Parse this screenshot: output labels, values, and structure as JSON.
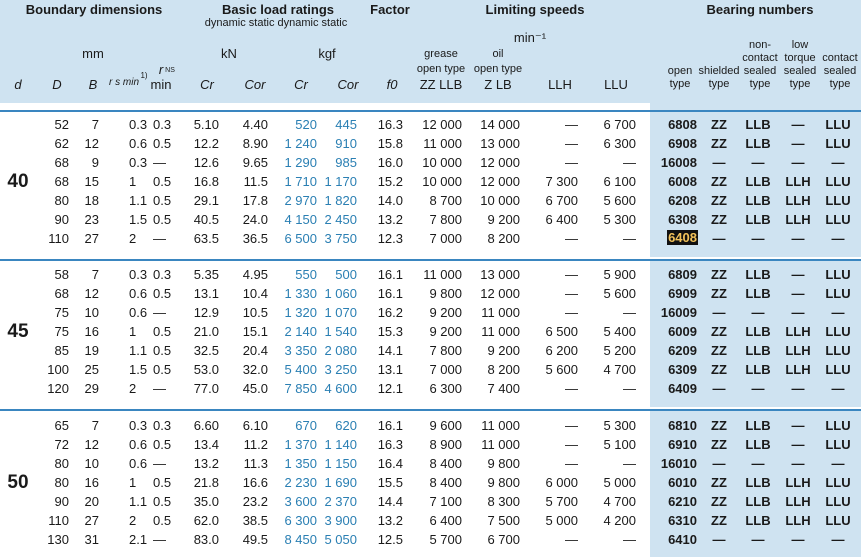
{
  "header": {
    "titles": {
      "boundary": "Boundary dimensions",
      "load": "Basic load ratings",
      "factor": "Factor",
      "limiting": "Limiting speeds",
      "bearing": "Bearing numbers"
    },
    "load_sub": "dynamic   static  dynamic  static",
    "unit_mm": "mm",
    "unit_kn": "kN",
    "unit_kgf": "kgf",
    "unit_min": "min⁻¹",
    "rns_top": "r",
    "rns_sub": "NS",
    "grease": "grease",
    "grease_type": "open type",
    "grease_codes": "ZZ  LLB",
    "oil": "oil",
    "oil_type": "open type",
    "oil_codes": "Z  LB",
    "bearing_heads": [
      [
        "open",
        "type"
      ],
      [
        "shielded",
        "type"
      ],
      [
        "non-",
        "contact",
        "sealed",
        "type"
      ],
      [
        "low",
        "torque",
        "sealed",
        "type"
      ],
      [
        "contact",
        "sealed",
        "type"
      ]
    ],
    "cols": [
      "d",
      "D",
      "B",
      "r s min",
      "1)",
      "min",
      "Cr",
      "Cor",
      "Cr",
      "Cor",
      "f0",
      "LLH",
      "LLU"
    ]
  },
  "groups": [
    {
      "d": "40",
      "rows": [
        [
          "52",
          "7",
          "0.3",
          "0.3",
          "5.10",
          "4.40",
          "520",
          "445",
          "16.3",
          "12 000",
          "14 000",
          "—",
          "6 700",
          "6808",
          "ZZ",
          "LLB",
          "—",
          "LLU"
        ],
        [
          "62",
          "12",
          "0.6",
          "0.5",
          "12.2",
          "8.90",
          "1 240",
          "910",
          "15.8",
          "11 000",
          "13 000",
          "—",
          "6 300",
          "6908",
          "ZZ",
          "LLB",
          "—",
          "LLU"
        ],
        [
          "68",
          "9",
          "0.3",
          "—",
          "12.6",
          "9.65",
          "1 290",
          "985",
          "16.0",
          "10 000",
          "12 000",
          "—",
          "—",
          "16008",
          "—",
          "—",
          "—",
          "—"
        ],
        [
          "68",
          "15",
          "1",
          "0.5",
          "16.8",
          "11.5",
          "1 710",
          "1 170",
          "15.2",
          "10 000",
          "12 000",
          "7 300",
          "6 100",
          "6008",
          "ZZ",
          "LLB",
          "LLH",
          "LLU"
        ],
        [
          "80",
          "18",
          "1.1",
          "0.5",
          "29.1",
          "17.8",
          "2 970",
          "1 820",
          "14.0",
          "8 700",
          "10 000",
          "6 700",
          "5 600",
          "6208",
          "ZZ",
          "LLB",
          "LLH",
          "LLU"
        ],
        [
          "90",
          "23",
          "1.5",
          "0.5",
          "40.5",
          "24.0",
          "4 150",
          "2 450",
          "13.2",
          "7 800",
          "9 200",
          "6 400",
          "5 300",
          "6308",
          "ZZ",
          "LLB",
          "LLH",
          "LLU"
        ],
        [
          "110",
          "27",
          "2",
          "—",
          "63.5",
          "36.5",
          "6 500",
          "3 750",
          "12.3",
          "7 000",
          "8 200",
          "—",
          "—",
          "6408",
          "—",
          "—",
          "—",
          "—"
        ]
      ]
    },
    {
      "d": "45",
      "rows": [
        [
          "58",
          "7",
          "0.3",
          "0.3",
          "5.35",
          "4.95",
          "550",
          "500",
          "16.1",
          "11 000",
          "13 000",
          "—",
          "5 900",
          "6809",
          "ZZ",
          "LLB",
          "—",
          "LLU"
        ],
        [
          "68",
          "12",
          "0.6",
          "0.5",
          "13.1",
          "10.4",
          "1 330",
          "1 060",
          "16.1",
          "9 800",
          "12 000",
          "—",
          "5 600",
          "6909",
          "ZZ",
          "LLB",
          "—",
          "LLU"
        ],
        [
          "75",
          "10",
          "0.6",
          "—",
          "12.9",
          "10.5",
          "1 320",
          "1 070",
          "16.2",
          "9 200",
          "11 000",
          "—",
          "—",
          "16009",
          "—",
          "—",
          "—",
          "—"
        ],
        [
          "75",
          "16",
          "1",
          "0.5",
          "21.0",
          "15.1",
          "2 140",
          "1 540",
          "15.3",
          "9 200",
          "11 000",
          "6 500",
          "5 400",
          "6009",
          "ZZ",
          "LLB",
          "LLH",
          "LLU"
        ],
        [
          "85",
          "19",
          "1.1",
          "0.5",
          "32.5",
          "20.4",
          "3 350",
          "2 080",
          "14.1",
          "7 800",
          "9 200",
          "6 200",
          "5 200",
          "6209",
          "ZZ",
          "LLB",
          "LLH",
          "LLU"
        ],
        [
          "100",
          "25",
          "1.5",
          "0.5",
          "53.0",
          "32.0",
          "5 400",
          "3 250",
          "13.1",
          "7 000",
          "8 200",
          "5 600",
          "4 700",
          "6309",
          "ZZ",
          "LLB",
          "LLH",
          "LLU"
        ],
        [
          "120",
          "29",
          "2",
          "—",
          "77.0",
          "45.0",
          "7 850",
          "4 600",
          "12.1",
          "6 300",
          "7 400",
          "—",
          "—",
          "6409",
          "—",
          "—",
          "—",
          "—"
        ]
      ]
    },
    {
      "d": "50",
      "rows": [
        [
          "65",
          "7",
          "0.3",
          "0.3",
          "6.60",
          "6.10",
          "670",
          "620",
          "16.1",
          "9 600",
          "11 000",
          "—",
          "5 300",
          "6810",
          "ZZ",
          "LLB",
          "—",
          "LLU"
        ],
        [
          "72",
          "12",
          "0.6",
          "0.5",
          "13.4",
          "11.2",
          "1 370",
          "1 140",
          "16.3",
          "8 900",
          "11 000",
          "—",
          "5 100",
          "6910",
          "ZZ",
          "LLB",
          "—",
          "LLU"
        ],
        [
          "80",
          "10",
          "0.6",
          "—",
          "13.2",
          "11.3",
          "1 350",
          "1 150",
          "16.4",
          "8 400",
          "9 800",
          "—",
          "—",
          "16010",
          "—",
          "—",
          "—",
          "—"
        ],
        [
          "80",
          "16",
          "1",
          "0.5",
          "21.8",
          "16.6",
          "2 230",
          "1 690",
          "15.5",
          "8 400",
          "9 800",
          "6 000",
          "5 000",
          "6010",
          "ZZ",
          "LLB",
          "LLH",
          "LLU"
        ],
        [
          "90",
          "20",
          "1.1",
          "0.5",
          "35.0",
          "23.2",
          "3 600",
          "2 370",
          "14.4",
          "7 100",
          "8 300",
          "5 700",
          "4 700",
          "6210",
          "ZZ",
          "LLB",
          "LLH",
          "LLU"
        ],
        [
          "110",
          "27",
          "2",
          "0.5",
          "62.0",
          "38.5",
          "6 300",
          "3 900",
          "13.2",
          "6 400",
          "7 500",
          "5 000",
          "4 200",
          "6310",
          "ZZ",
          "LLB",
          "LLH",
          "LLU"
        ],
        [
          "130",
          "31",
          "2.1",
          "—",
          "83.0",
          "49.5",
          "8 450",
          "5 050",
          "12.5",
          "5 700",
          "6 700",
          "—",
          "—",
          "6410",
          "—",
          "—",
          "—",
          "—"
        ]
      ]
    }
  ],
  "highlighted": "6408",
  "colors": {
    "header_bg": "#cfe3f1",
    "separator": "#3a86c0",
    "kgf_text": "#2a7fb3",
    "highlight_bg": "#111111",
    "highlight_fg": "#f2c25a"
  }
}
